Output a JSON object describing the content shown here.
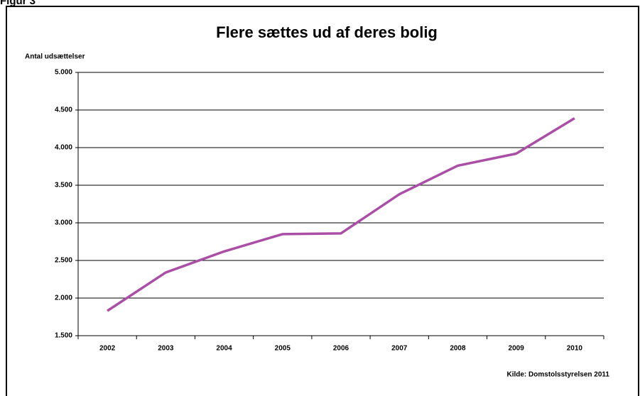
{
  "chart_data": {
    "type": "line",
    "figure_label": "Figur 3",
    "title": "Flere sættes ud af deres bolig",
    "y_label": "Antal udsættelser",
    "source": "Kilde: Domstolsstyrelsen 2011",
    "categories": [
      "2002",
      "2003",
      "2004",
      "2005",
      "2006",
      "2007",
      "2008",
      "2009",
      "2010"
    ],
    "series": [
      {
        "name": "Antal udsættelser",
        "color": "#aa4ea6",
        "values": [
          1830,
          2340,
          2620,
          2850,
          2860,
          3380,
          3760,
          3920,
          4390
        ]
      }
    ],
    "ylim": [
      1500,
      5000
    ],
    "yticks": [
      {
        "value": 1500,
        "label": "1.500"
      },
      {
        "value": 2000,
        "label": "2.000"
      },
      {
        "value": 2500,
        "label": "2.500"
      },
      {
        "value": 3000,
        "label": "3.000"
      },
      {
        "value": 3500,
        "label": "3.500"
      },
      {
        "value": 4000,
        "label": "4.000"
      },
      {
        "value": 4500,
        "label": "4.500"
      },
      {
        "value": 5000,
        "label": "5.000"
      }
    ],
    "grid": true,
    "legend": false
  }
}
